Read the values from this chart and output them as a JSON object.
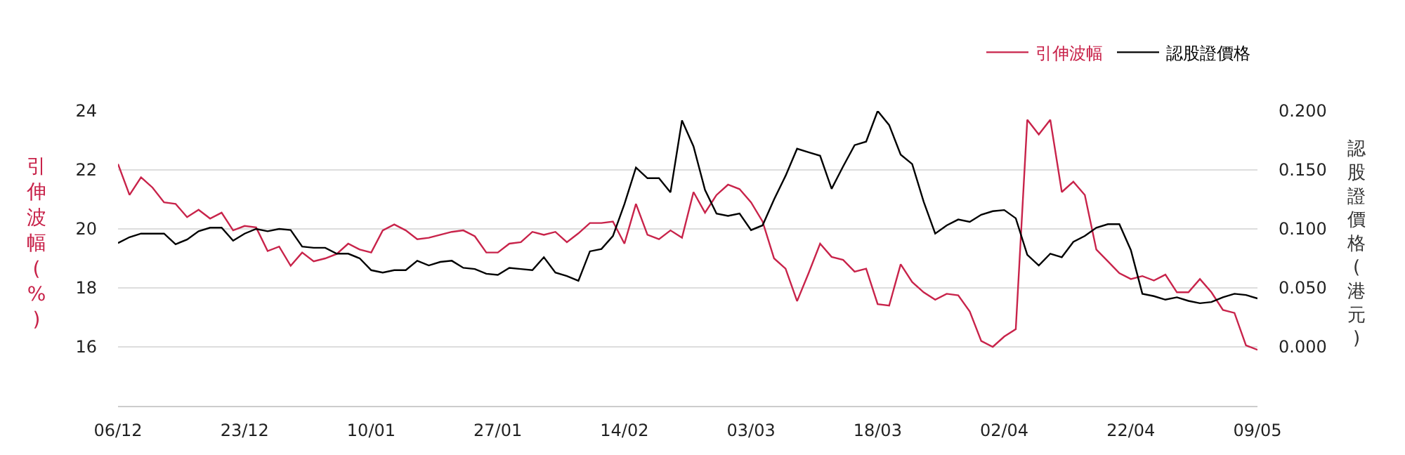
{
  "chart_data": {
    "type": "line",
    "categories": [
      "06/12",
      null,
      null,
      null,
      null,
      null,
      null,
      null,
      null,
      null,
      null,
      "23/12",
      null,
      null,
      null,
      null,
      null,
      null,
      null,
      null,
      null,
      null,
      "10/01",
      null,
      null,
      null,
      null,
      null,
      null,
      null,
      null,
      null,
      null,
      "27/01",
      null,
      null,
      null,
      null,
      null,
      null,
      null,
      null,
      null,
      null,
      "14/02",
      null,
      null,
      null,
      null,
      null,
      null,
      null,
      null,
      null,
      null,
      "03/03",
      null,
      null,
      null,
      null,
      null,
      null,
      null,
      null,
      null,
      null,
      "18/03",
      null,
      null,
      null,
      null,
      null,
      null,
      null,
      null,
      null,
      null,
      "02/04",
      null,
      null,
      null,
      null,
      null,
      null,
      null,
      null,
      null,
      null,
      "22/04",
      null,
      null,
      null,
      null,
      null,
      null,
      null,
      null,
      null,
      null,
      "09/05"
    ],
    "series": [
      {
        "name": "引伸波幅",
        "color": "#c8234a",
        "values": [
          22.2,
          21.15,
          21.75,
          21.4,
          20.9,
          20.85,
          20.4,
          20.65,
          20.35,
          20.55,
          19.95,
          20.1,
          20.05,
          19.25,
          19.4,
          18.75,
          19.2,
          18.9,
          19.0,
          19.15,
          19.5,
          19.3,
          19.2,
          19.95,
          20.15,
          19.95,
          19.65,
          19.7,
          19.8,
          19.9,
          19.95,
          19.75,
          19.2,
          19.2,
          19.5,
          19.55,
          19.9,
          19.8,
          19.9,
          19.55,
          19.85,
          20.2,
          20.2,
          20.25,
          19.5,
          20.85,
          19.8,
          19.65,
          19.95,
          19.7,
          21.25,
          20.55,
          21.15,
          21.5,
          21.35,
          20.9,
          20.25,
          19.0,
          18.65,
          17.55,
          18.5,
          19.5,
          19.05,
          18.95,
          18.55,
          18.65,
          17.45,
          17.4,
          18.8,
          18.2,
          17.85,
          17.6,
          17.8,
          17.75,
          17.2,
          16.2,
          16.0,
          16.35,
          16.6,
          23.7,
          23.2,
          23.7,
          21.25,
          21.6,
          21.15,
          19.3,
          18.9,
          18.5,
          18.3,
          18.4,
          18.25,
          18.45,
          17.85,
          17.85,
          18.3,
          17.85,
          17.25,
          17.15,
          16.05,
          15.9
        ]
      },
      {
        "name": "認股證價格",
        "color": "#000000",
        "axis": "y2",
        "values": [
          0.088,
          0.093,
          0.096,
          0.096,
          0.096,
          0.087,
          0.091,
          0.098,
          0.101,
          0.101,
          0.09,
          0.096,
          0.1,
          0.098,
          0.1,
          0.099,
          0.085,
          0.084,
          0.084,
          0.079,
          0.079,
          0.075,
          0.065,
          0.063,
          0.065,
          0.065,
          0.073,
          0.069,
          0.072,
          0.073,
          0.067,
          0.066,
          0.062,
          0.061,
          0.067,
          0.066,
          0.065,
          0.076,
          0.063,
          0.06,
          0.056,
          0.081,
          0.083,
          0.094,
          0.121,
          0.152,
          0.143,
          0.143,
          0.131,
          0.192,
          0.17,
          0.133,
          0.113,
          0.111,
          0.113,
          0.099,
          0.103,
          0.125,
          0.145,
          0.168,
          0.165,
          0.162,
          0.134,
          0.153,
          0.171,
          0.174,
          0.2,
          0.188,
          0.163,
          0.155,
          0.123,
          0.096,
          0.103,
          0.108,
          0.106,
          0.112,
          0.115,
          0.116,
          0.109,
          0.078,
          0.069,
          0.079,
          0.076,
          0.089,
          0.094,
          0.101,
          0.104,
          0.104,
          0.082,
          0.045,
          0.043,
          0.04,
          0.042,
          0.039,
          0.037,
          0.038,
          0.042,
          0.045,
          0.044,
          0.041
        ]
      }
    ],
    "ylabel": "引伸波幅(%)",
    "y2label": "認股證價格(港元)",
    "ylim": [
      14,
      24
    ],
    "yticks": [
      16,
      18,
      20,
      22,
      24
    ],
    "y2lim": [
      -0.05,
      0.2
    ],
    "y2ticks": [
      {
        "value": 0,
        "label": "0.000"
      },
      {
        "value": 0.05,
        "label": "0.050"
      },
      {
        "value": 0.1,
        "label": "0.100"
      },
      {
        "value": 0.15,
        "label": "0.150"
      },
      {
        "value": 0.2,
        "label": "0.200"
      }
    ],
    "grid": "y",
    "legend": "top right",
    "marker": "none",
    "line_style": "solid"
  }
}
